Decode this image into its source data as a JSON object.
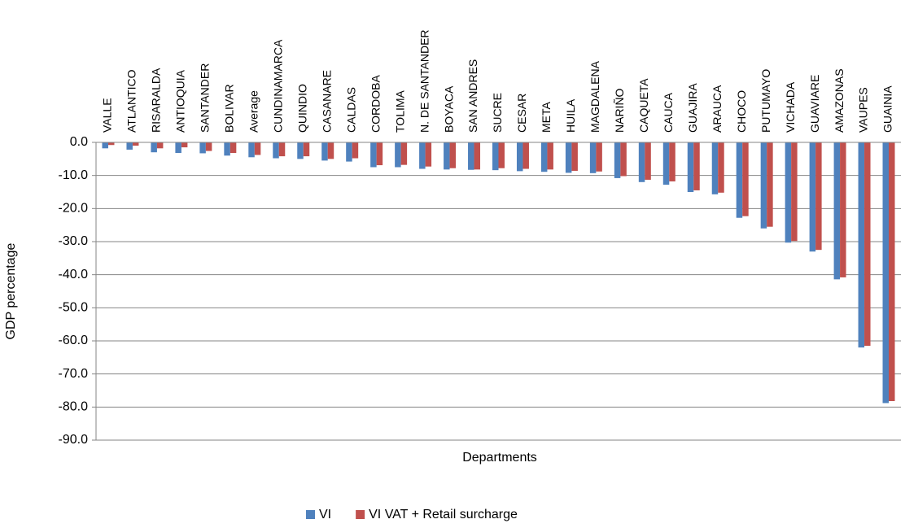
{
  "chart_data": {
    "type": "bar",
    "x_label": "Departments",
    "y_label": "GDP percentage",
    "categories": [
      "VALLE",
      "ATLANTICO",
      "RISARALDA",
      "ANTIOQUIA",
      "SANTANDER",
      "BOLIVAR",
      "Average",
      "CUNDINAMARCA",
      "QUINDIO",
      "CASANARE",
      "CALDAS",
      "CORDOBA",
      "TOLIMA",
      "N. DE SANTANDER",
      "BOYACA",
      "SAN ANDRES",
      "SUCRE",
      "CESAR",
      "META",
      "HUILA",
      "MAGDALENA",
      "NARIÑO",
      "CAQUETA",
      "CAUCA",
      "GUAJIRA",
      "ARAUCA",
      "CHOCO",
      "PUTUMAYO",
      "VICHADA",
      "GUAVIARE",
      "AMAZONAS",
      "VAUPES",
      "GUAINIA"
    ],
    "series": [
      {
        "name": "VI",
        "color": "#4f81bd",
        "values": [
          -1.8,
          -2.2,
          -3.0,
          -3.2,
          -3.3,
          -4.0,
          -4.5,
          -4.8,
          -5.0,
          -5.5,
          -5.8,
          -7.5,
          -7.5,
          -8.0,
          -8.2,
          -8.3,
          -8.4,
          -8.7,
          -8.9,
          -9.2,
          -9.3,
          -10.8,
          -12.0,
          -12.8,
          -15.0,
          -15.7,
          -22.8,
          -26.0,
          -30.3,
          -33.0,
          -41.4,
          -62.0,
          -78.8
        ]
      },
      {
        "name": "VI VAT + Retail surcharge",
        "color": "#c0504d",
        "values": [
          -0.8,
          -1.0,
          -1.8,
          -1.5,
          -2.6,
          -3.2,
          -3.8,
          -4.2,
          -4.2,
          -5.0,
          -4.8,
          -6.9,
          -6.8,
          -7.3,
          -7.8,
          -8.2,
          -7.8,
          -8.0,
          -8.2,
          -8.6,
          -8.8,
          -10.2,
          -11.3,
          -11.8,
          -14.5,
          -15.2,
          -22.3,
          -25.5,
          -29.8,
          -32.5,
          -40.8,
          -61.5,
          -78.2
        ]
      }
    ],
    "ylim": [
      0,
      -90
    ],
    "yticks": [
      {
        "value": 0,
        "label": "0.0"
      },
      {
        "value": -10,
        "label": "-10.0"
      },
      {
        "value": -20,
        "label": "-20.0"
      },
      {
        "value": -30,
        "label": "-30.0"
      },
      {
        "value": -40,
        "label": "-40.0"
      },
      {
        "value": -50,
        "label": "-50.0"
      },
      {
        "value": -60,
        "label": "-60.0"
      },
      {
        "value": -70,
        "label": "-70.0"
      },
      {
        "value": -80,
        "label": "-80.0"
      },
      {
        "value": -90,
        "label": "-90.0"
      }
    ],
    "grid": true,
    "legend": "bottom"
  }
}
